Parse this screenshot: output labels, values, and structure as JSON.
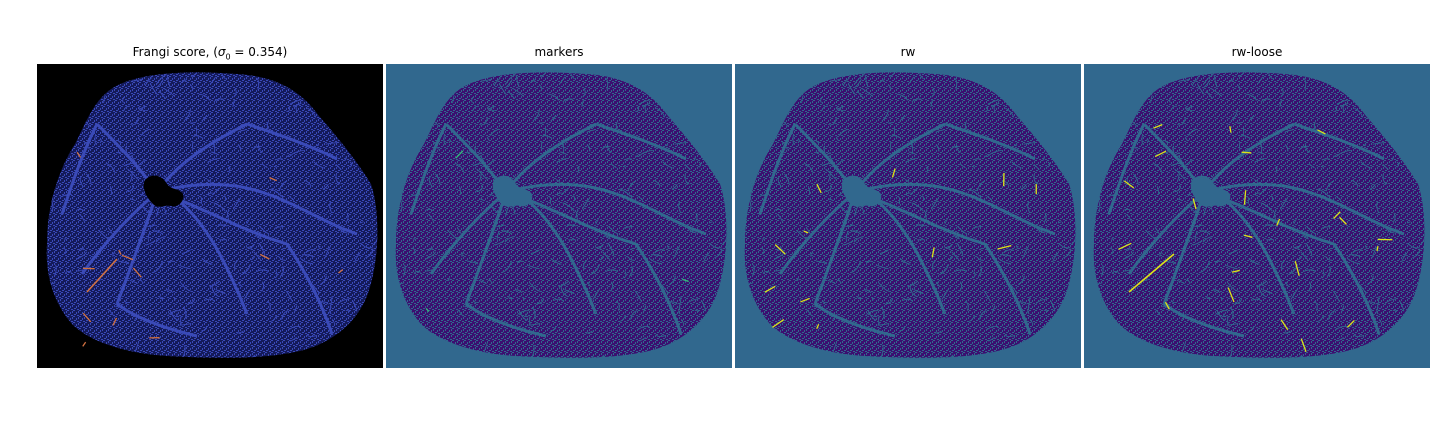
{
  "panels": [
    {
      "title_prefix": "Frangi score, (",
      "title_symbol": "σ",
      "title_sub": "0",
      "title_suffix": " = 0.354)",
      "background": "#000000",
      "tissue_color": "#141a5a",
      "vessel_color": "#3a4ab8",
      "highlight_color": "#d07040"
    },
    {
      "title": "markers",
      "background": "#31688e",
      "tissue_color": "#3b0f70",
      "vessel_color": "#31688e",
      "highlight_color": "#35b779"
    },
    {
      "title": "rw",
      "background": "#31688e",
      "tissue_color": "#3b0f70",
      "vessel_color": "#31688e",
      "highlight_color": "#dde318"
    },
    {
      "title": "rw-loose",
      "background": "#31688e",
      "tissue_color": "#3b0f70",
      "vessel_color": "#31688e",
      "highlight_color": "#dde318"
    }
  ]
}
